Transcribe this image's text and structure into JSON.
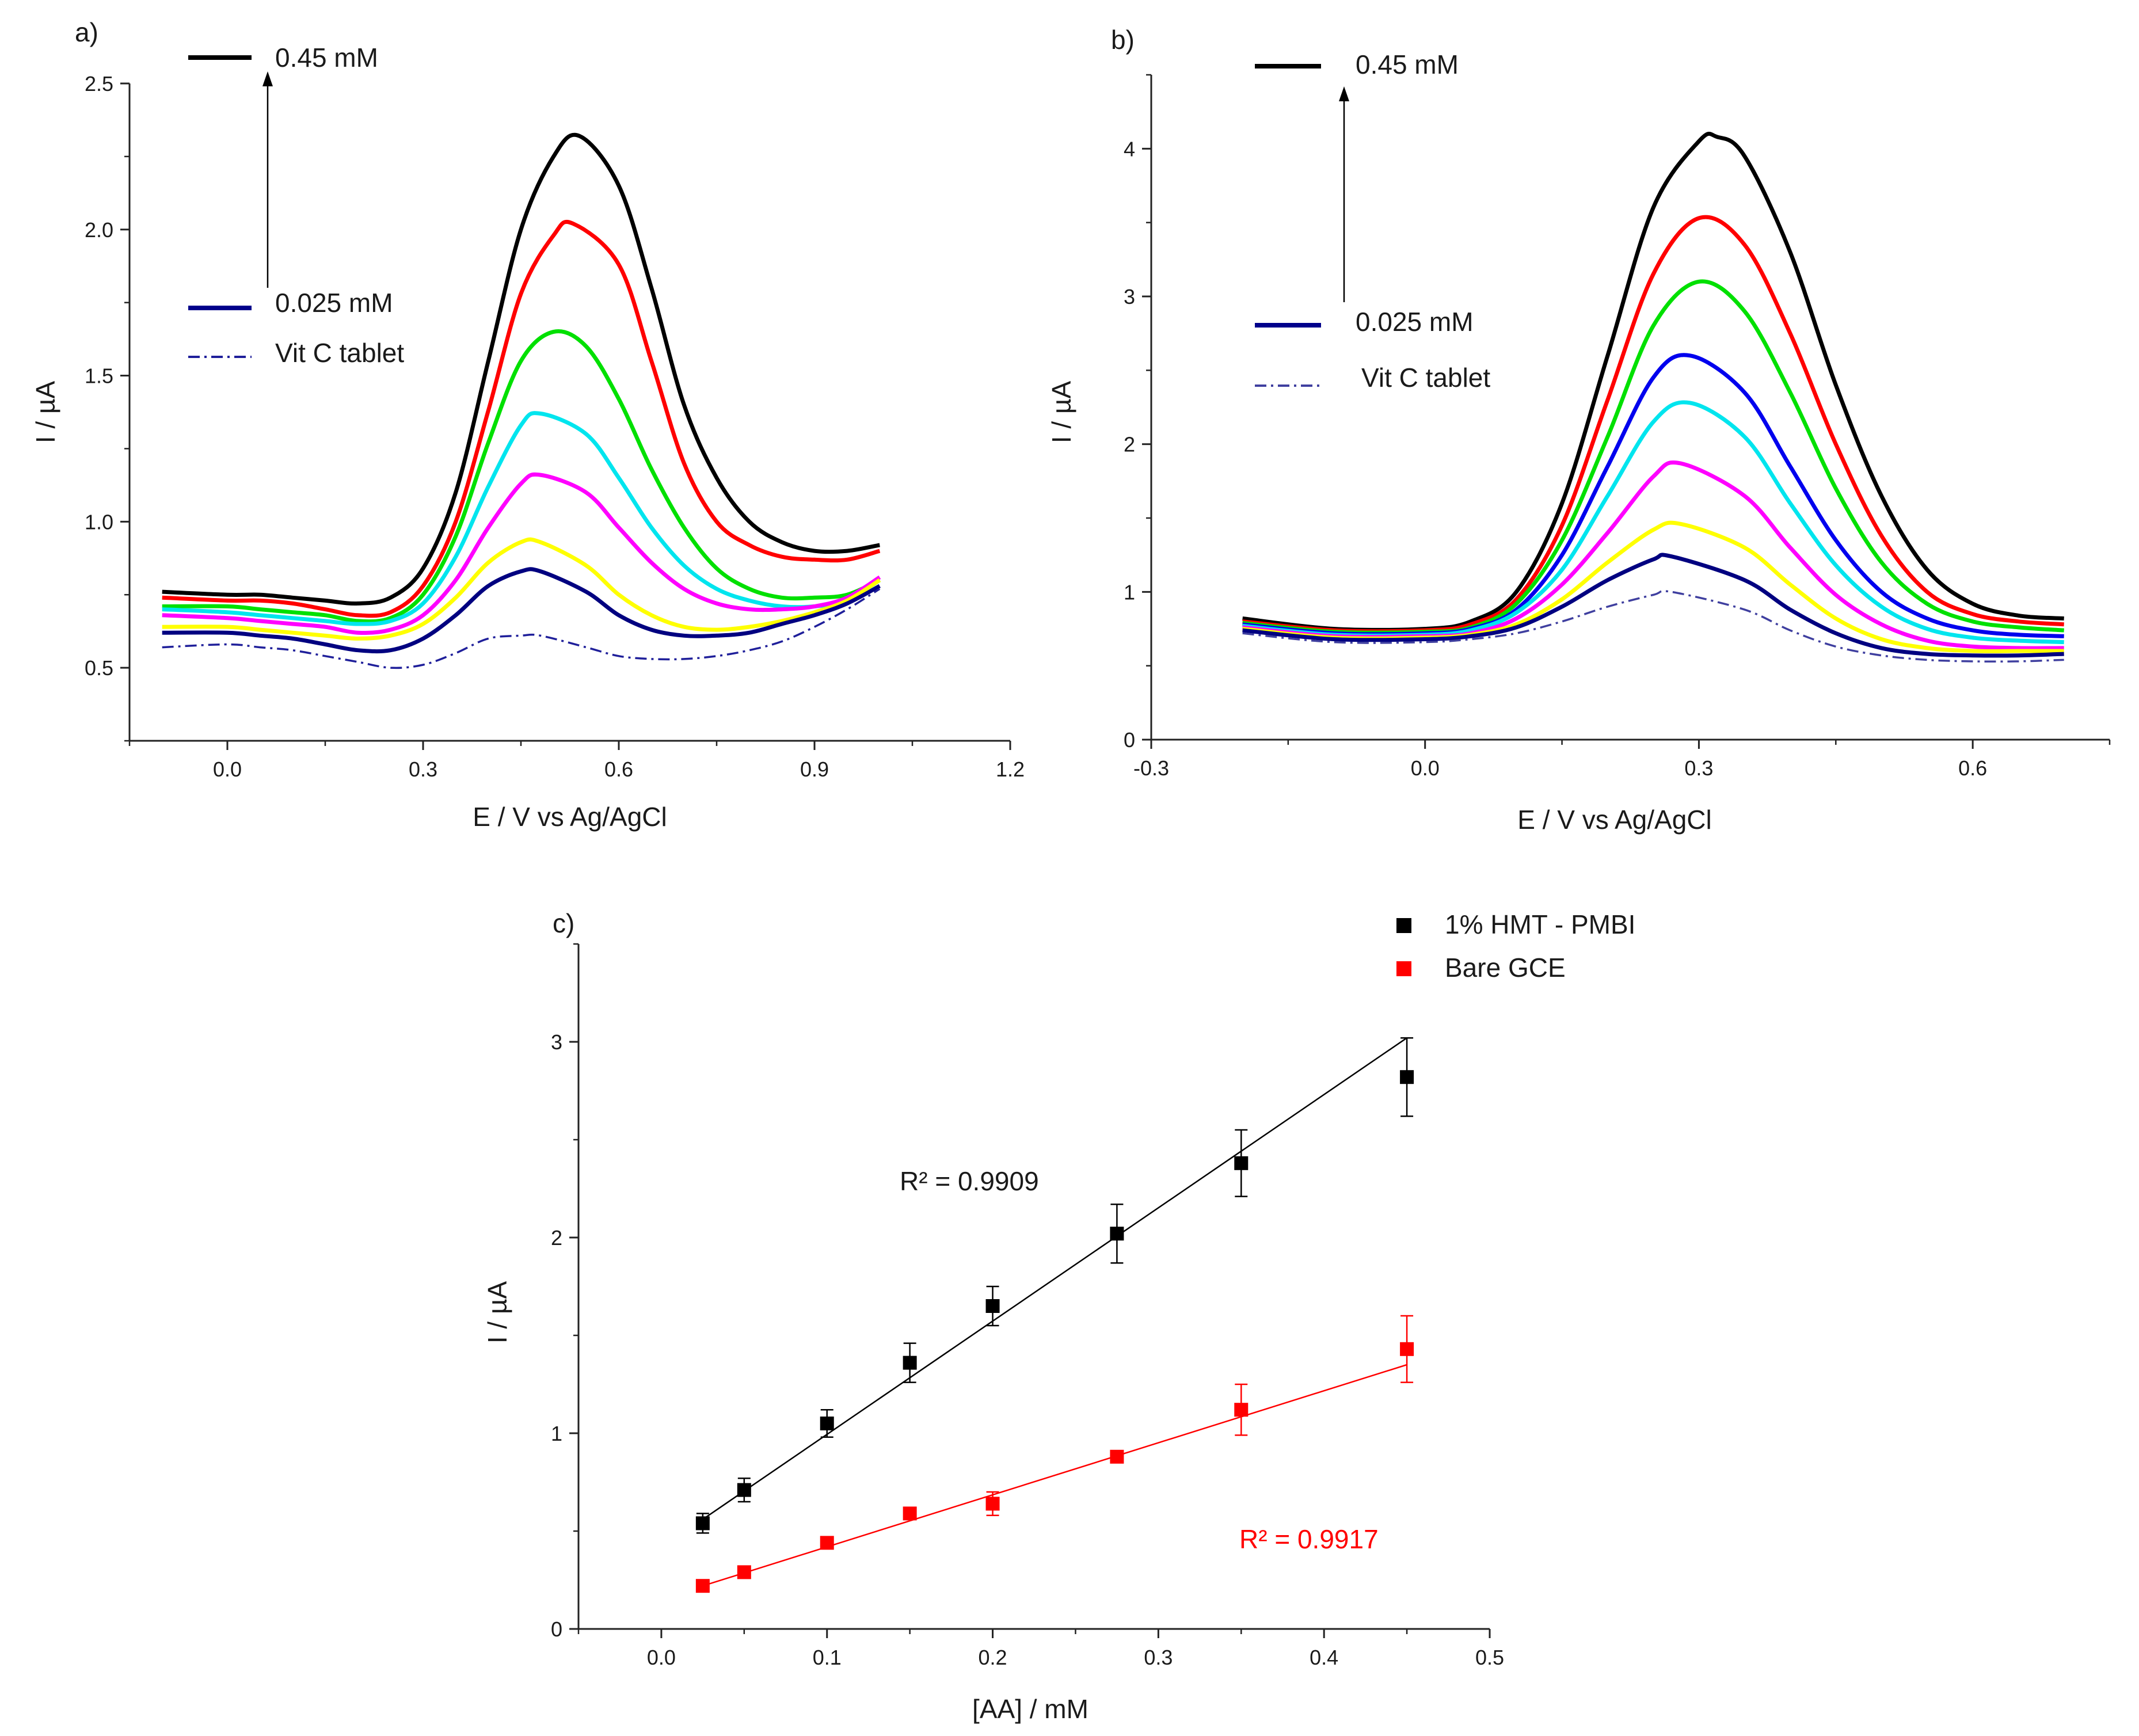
{
  "chart_data": [
    {
      "panel_label": "a)",
      "type": "line",
      "xlabel": "E / V vs Ag/AgCl",
      "ylabel": "I / µA",
      "xlim": [
        -0.15,
        1.2
      ],
      "ylim": [
        0.25,
        2.5
      ],
      "xticks": [
        "0.0",
        "0.3",
        "0.6",
        "0.9",
        "1.2"
      ],
      "yticks": [
        "0.5",
        "1.0",
        "1.5",
        "2.0",
        "2.5"
      ],
      "grid": false,
      "legend": {
        "position": "top-left",
        "entries": [
          {
            "label": "0.45 mM",
            "color": "#000000",
            "style": "solid"
          },
          {
            "label": "0.025 mM",
            "color": "#00008b",
            "style": "solid"
          },
          {
            "label": "Vit C tablet",
            "color": "#1f1f9a",
            "style": "dashdot"
          }
        ],
        "arrow": "upward arrow from 0.025 mM to 0.45 mM"
      },
      "series": [
        {
          "color": "#000000",
          "style": "solid",
          "x": [
            -0.1,
            0.0,
            0.05,
            0.1,
            0.15,
            0.2,
            0.25,
            0.3,
            0.35,
            0.4,
            0.45,
            0.5,
            0.54,
            0.6,
            0.65,
            0.7,
            0.75,
            0.8,
            0.85,
            0.9,
            0.95,
            1.0
          ],
          "y": [
            0.76,
            0.75,
            0.75,
            0.74,
            0.73,
            0.72,
            0.74,
            0.84,
            1.1,
            1.55,
            2.0,
            2.25,
            2.32,
            2.15,
            1.8,
            1.4,
            1.15,
            1.0,
            0.93,
            0.9,
            0.9,
            0.92
          ]
        },
        {
          "color": "#ff0000",
          "style": "solid",
          "x": [
            -0.1,
            0.0,
            0.05,
            0.1,
            0.15,
            0.2,
            0.25,
            0.3,
            0.35,
            0.4,
            0.45,
            0.5,
            0.53,
            0.6,
            0.65,
            0.7,
            0.75,
            0.8,
            0.85,
            0.9,
            0.95,
            1.0
          ],
          "y": [
            0.74,
            0.73,
            0.73,
            0.72,
            0.7,
            0.68,
            0.69,
            0.78,
            1.0,
            1.38,
            1.78,
            1.98,
            2.02,
            1.88,
            1.55,
            1.2,
            1.0,
            0.92,
            0.88,
            0.87,
            0.87,
            0.9
          ]
        },
        {
          "color": "#00e000",
          "style": "solid",
          "x": [
            -0.1,
            0.0,
            0.05,
            0.1,
            0.15,
            0.2,
            0.25,
            0.3,
            0.35,
            0.4,
            0.45,
            0.5,
            0.55,
            0.6,
            0.65,
            0.7,
            0.75,
            0.8,
            0.85,
            0.9,
            0.95,
            1.0
          ],
          "y": [
            0.71,
            0.71,
            0.7,
            0.69,
            0.68,
            0.66,
            0.67,
            0.75,
            0.95,
            1.27,
            1.55,
            1.65,
            1.6,
            1.42,
            1.18,
            0.98,
            0.84,
            0.77,
            0.74,
            0.74,
            0.75,
            0.8
          ]
        },
        {
          "color": "#00e5ee",
          "style": "solid",
          "x": [
            -0.1,
            0.0,
            0.05,
            0.1,
            0.15,
            0.2,
            0.25,
            0.3,
            0.35,
            0.4,
            0.45,
            0.48,
            0.55,
            0.6,
            0.65,
            0.7,
            0.75,
            0.8,
            0.85,
            0.9,
            0.95,
            1.0
          ],
          "y": [
            0.7,
            0.69,
            0.68,
            0.67,
            0.66,
            0.65,
            0.66,
            0.72,
            0.88,
            1.12,
            1.33,
            1.37,
            1.3,
            1.15,
            0.98,
            0.85,
            0.77,
            0.73,
            0.71,
            0.71,
            0.73,
            0.8
          ]
        },
        {
          "color": "#ff00ff",
          "style": "solid",
          "x": [
            -0.1,
            0.0,
            0.05,
            0.1,
            0.15,
            0.2,
            0.25,
            0.3,
            0.35,
            0.4,
            0.45,
            0.48,
            0.55,
            0.6,
            0.65,
            0.7,
            0.75,
            0.8,
            0.85,
            0.9,
            0.95,
            1.0
          ],
          "y": [
            0.68,
            0.67,
            0.66,
            0.65,
            0.64,
            0.62,
            0.63,
            0.68,
            0.8,
            0.98,
            1.13,
            1.16,
            1.1,
            0.98,
            0.86,
            0.77,
            0.72,
            0.7,
            0.7,
            0.71,
            0.74,
            0.81
          ]
        },
        {
          "color": "#ffff00",
          "style": "solid",
          "x": [
            -0.1,
            0.0,
            0.05,
            0.1,
            0.15,
            0.2,
            0.25,
            0.3,
            0.35,
            0.4,
            0.45,
            0.48,
            0.55,
            0.6,
            0.65,
            0.7,
            0.75,
            0.8,
            0.85,
            0.9,
            0.95,
            1.0
          ],
          "y": [
            0.64,
            0.64,
            0.63,
            0.62,
            0.61,
            0.6,
            0.61,
            0.65,
            0.74,
            0.86,
            0.93,
            0.93,
            0.85,
            0.75,
            0.68,
            0.64,
            0.63,
            0.64,
            0.66,
            0.69,
            0.73,
            0.8
          ]
        },
        {
          "color": "#000080",
          "style": "solid",
          "x": [
            -0.1,
            0.0,
            0.05,
            0.1,
            0.15,
            0.2,
            0.25,
            0.3,
            0.35,
            0.4,
            0.45,
            0.48,
            0.55,
            0.6,
            0.65,
            0.7,
            0.75,
            0.8,
            0.85,
            0.9,
            0.95,
            1.0
          ],
          "y": [
            0.62,
            0.62,
            0.61,
            0.6,
            0.58,
            0.56,
            0.56,
            0.6,
            0.68,
            0.78,
            0.83,
            0.83,
            0.76,
            0.68,
            0.63,
            0.61,
            0.61,
            0.62,
            0.65,
            0.68,
            0.72,
            0.78
          ]
        },
        {
          "color": "#1f1f9a",
          "style": "dashdot",
          "x": [
            -0.1,
            0.0,
            0.05,
            0.1,
            0.15,
            0.2,
            0.25,
            0.3,
            0.35,
            0.4,
            0.45,
            0.48,
            0.55,
            0.6,
            0.65,
            0.7,
            0.75,
            0.8,
            0.85,
            0.9,
            0.95,
            1.0
          ],
          "y": [
            0.57,
            0.58,
            0.57,
            0.56,
            0.54,
            0.52,
            0.5,
            0.51,
            0.55,
            0.6,
            0.61,
            0.61,
            0.57,
            0.54,
            0.53,
            0.53,
            0.54,
            0.56,
            0.59,
            0.64,
            0.7,
            0.77
          ]
        }
      ]
    },
    {
      "panel_label": "b)",
      "type": "line",
      "xlabel": "E / V vs Ag/AgCl",
      "ylabel": "I / µA",
      "xlim": [
        -0.3,
        0.75
      ],
      "ylim": [
        0,
        4.5
      ],
      "xticks": [
        "-0.3",
        "0.0",
        "0.3",
        "0.6"
      ],
      "yticks": [
        "0",
        "1",
        "2",
        "3",
        "4"
      ],
      "grid": false,
      "legend": {
        "position": "top-left",
        "entries": [
          {
            "label": "0.45 mM",
            "color": "#000000",
            "style": "solid"
          },
          {
            "label": "0.025 mM",
            "color": "#00008b",
            "style": "solid"
          },
          {
            "label": "Vit C tablet",
            "color": "#3f3f9f",
            "style": "dashdot"
          }
        ],
        "arrow": "upward arrow from 0.025 mM to 0.45 mM"
      },
      "series": [
        {
          "color": "#000000",
          "style": "solid",
          "x": [
            -0.2,
            -0.1,
            0.0,
            0.05,
            0.1,
            0.15,
            0.2,
            0.25,
            0.3,
            0.32,
            0.35,
            0.4,
            0.45,
            0.5,
            0.55,
            0.6,
            0.65,
            0.7
          ],
          "y": [
            0.82,
            0.75,
            0.75,
            0.8,
            1.0,
            1.6,
            2.6,
            3.6,
            4.05,
            4.08,
            3.95,
            3.3,
            2.4,
            1.65,
            1.15,
            0.92,
            0.84,
            0.82
          ]
        },
        {
          "color": "#ff0000",
          "style": "solid",
          "x": [
            -0.2,
            -0.1,
            0.0,
            0.05,
            0.1,
            0.15,
            0.2,
            0.25,
            0.3,
            0.35,
            0.4,
            0.45,
            0.5,
            0.55,
            0.6,
            0.65,
            0.7
          ],
          "y": [
            0.8,
            0.74,
            0.74,
            0.78,
            0.95,
            1.45,
            2.3,
            3.15,
            3.53,
            3.35,
            2.75,
            2.0,
            1.38,
            1.0,
            0.85,
            0.8,
            0.78
          ]
        },
        {
          "color": "#00e000",
          "style": "solid",
          "x": [
            -0.2,
            -0.1,
            0.0,
            0.05,
            0.1,
            0.15,
            0.2,
            0.25,
            0.3,
            0.35,
            0.4,
            0.45,
            0.5,
            0.55,
            0.6,
            0.65,
            0.7
          ],
          "y": [
            0.79,
            0.73,
            0.73,
            0.76,
            0.92,
            1.35,
            2.05,
            2.8,
            3.1,
            2.9,
            2.35,
            1.7,
            1.2,
            0.92,
            0.8,
            0.76,
            0.74
          ]
        },
        {
          "color": "#0000ee",
          "style": "solid",
          "x": [
            -0.2,
            -0.1,
            0.0,
            0.05,
            0.1,
            0.15,
            0.2,
            0.25,
            0.29,
            0.35,
            0.4,
            0.45,
            0.5,
            0.55,
            0.6,
            0.65,
            0.7
          ],
          "y": [
            0.78,
            0.72,
            0.72,
            0.75,
            0.88,
            1.25,
            1.85,
            2.45,
            2.6,
            2.35,
            1.85,
            1.35,
            1.0,
            0.82,
            0.74,
            0.71,
            0.7
          ]
        },
        {
          "color": "#00e5ee",
          "style": "solid",
          "x": [
            -0.2,
            -0.1,
            0.0,
            0.05,
            0.1,
            0.15,
            0.2,
            0.25,
            0.29,
            0.35,
            0.4,
            0.45,
            0.5,
            0.55,
            0.6,
            0.65,
            0.7
          ],
          "y": [
            0.77,
            0.71,
            0.71,
            0.74,
            0.86,
            1.15,
            1.65,
            2.15,
            2.28,
            2.05,
            1.6,
            1.18,
            0.9,
            0.75,
            0.69,
            0.67,
            0.66
          ]
        },
        {
          "color": "#ff00ff",
          "style": "solid",
          "x": [
            -0.2,
            -0.1,
            0.0,
            0.05,
            0.1,
            0.15,
            0.2,
            0.25,
            0.28,
            0.35,
            0.4,
            0.45,
            0.5,
            0.55,
            0.6,
            0.65,
            0.7
          ],
          "y": [
            0.76,
            0.7,
            0.7,
            0.72,
            0.82,
            1.05,
            1.4,
            1.78,
            1.87,
            1.65,
            1.3,
            0.98,
            0.78,
            0.67,
            0.63,
            0.62,
            0.62
          ]
        },
        {
          "color": "#ffff00",
          "style": "solid",
          "x": [
            -0.2,
            -0.1,
            0.0,
            0.05,
            0.1,
            0.15,
            0.2,
            0.25,
            0.28,
            0.35,
            0.4,
            0.45,
            0.5,
            0.55,
            0.6,
            0.65,
            0.7
          ],
          "y": [
            0.75,
            0.69,
            0.69,
            0.71,
            0.78,
            0.95,
            1.2,
            1.42,
            1.46,
            1.3,
            1.05,
            0.82,
            0.68,
            0.62,
            0.6,
            0.6,
            0.6
          ]
        },
        {
          "color": "#000080",
          "style": "solid",
          "x": [
            -0.2,
            -0.1,
            0.0,
            0.05,
            0.1,
            0.15,
            0.2,
            0.25,
            0.27,
            0.35,
            0.4,
            0.45,
            0.5,
            0.55,
            0.6,
            0.65,
            0.7
          ],
          "y": [
            0.74,
            0.68,
            0.68,
            0.7,
            0.76,
            0.9,
            1.08,
            1.22,
            1.24,
            1.08,
            0.88,
            0.72,
            0.62,
            0.58,
            0.57,
            0.57,
            0.58
          ]
        },
        {
          "color": "#3f3f9f",
          "style": "dashdot",
          "x": [
            -0.2,
            -0.1,
            0.0,
            0.05,
            0.1,
            0.15,
            0.2,
            0.25,
            0.27,
            0.35,
            0.4,
            0.45,
            0.5,
            0.55,
            0.6,
            0.65,
            0.7
          ],
          "y": [
            0.72,
            0.66,
            0.66,
            0.68,
            0.72,
            0.8,
            0.9,
            0.98,
            1.0,
            0.88,
            0.74,
            0.63,
            0.57,
            0.54,
            0.53,
            0.53,
            0.54
          ]
        }
      ]
    },
    {
      "panel_label": "c)",
      "type": "scatter",
      "xlabel": "[AA] / mM",
      "ylabel": "I / µA",
      "xlim": [
        -0.05,
        0.5
      ],
      "ylim": [
        0,
        3.5
      ],
      "xticks": [
        "0.0",
        "0.1",
        "0.2",
        "0.3",
        "0.4",
        "0.5"
      ],
      "yticks": [
        "0",
        "1",
        "2",
        "3"
      ],
      "grid": false,
      "legend_position": "top-right",
      "series": [
        {
          "name": "1% HMT - PMBI",
          "color": "#000000",
          "marker": "square",
          "x": [
            0.025,
            0.05,
            0.1,
            0.15,
            0.2,
            0.275,
            0.35,
            0.45
          ],
          "y": [
            0.54,
            0.71,
            1.05,
            1.36,
            1.65,
            2.02,
            2.38,
            2.82
          ],
          "error": [
            0.05,
            0.06,
            0.07,
            0.1,
            0.1,
            0.15,
            0.17,
            0.2
          ],
          "fit": {
            "x": [
              0.025,
              0.45
            ],
            "y": [
              0.56,
              3.02
            ]
          },
          "annotation": "R² = 0.9909"
        },
        {
          "name": "Bare GCE",
          "color": "#ff0000",
          "marker": "square",
          "x": [
            0.025,
            0.05,
            0.1,
            0.15,
            0.2,
            0.275,
            0.35,
            0.45
          ],
          "y": [
            0.22,
            0.29,
            0.44,
            0.59,
            0.64,
            0.88,
            1.12,
            1.43
          ],
          "error": [
            0.02,
            0.02,
            0.03,
            0.03,
            0.06,
            0.03,
            0.13,
            0.17
          ],
          "fit": {
            "x": [
              0.025,
              0.45
            ],
            "y": [
              0.22,
              1.35
            ]
          },
          "annotation": "R² = 0.9917"
        }
      ]
    }
  ]
}
